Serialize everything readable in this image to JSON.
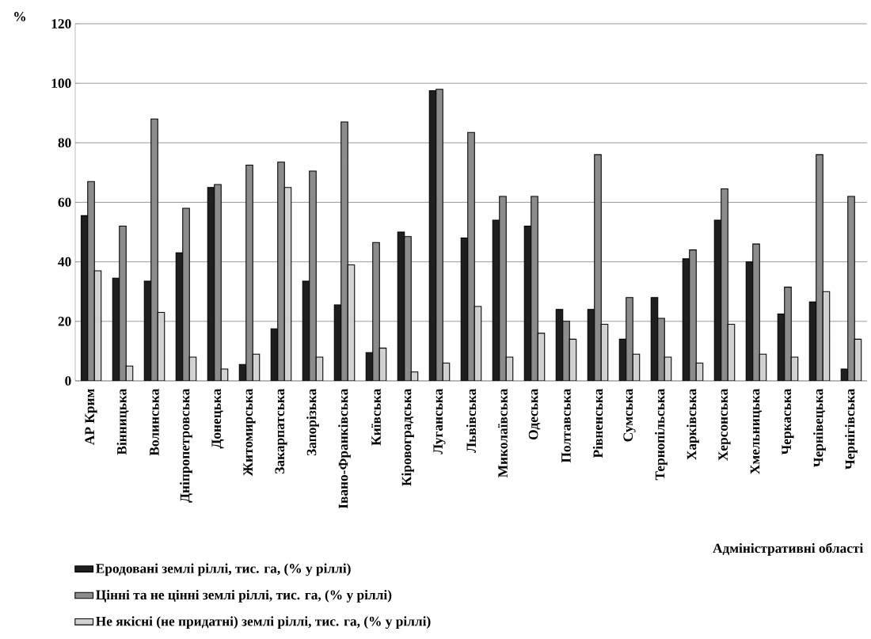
{
  "chart_data": {
    "type": "bar",
    "ylabel": "%",
    "xlabel": "Адміністративні області",
    "categories": [
      "АР Крим",
      "Вінницька",
      "Волинська",
      "Дніпропетровська",
      "Донецька",
      "Житомирська",
      "Закарпатська",
      "Запорізька",
      "Івано-Франківська",
      "Київська",
      "Кіровоградська",
      "Луганська",
      "Львівська",
      "Миколаївська",
      "Одеська",
      "Полтавська",
      "Рівненська",
      "Сумська",
      "Тернопільська",
      "Харківська",
      "Херсонська",
      "Хмельницька",
      "Черкаська",
      "Чернівецька",
      "Чернігівська"
    ],
    "series": [
      {
        "name": "Еродовані землі ріллі, тис. га, (% у ріллі)",
        "color": "#1e1e1e",
        "values": [
          55.5,
          34.5,
          33.5,
          43,
          65,
          5.5,
          17.5,
          33.5,
          25.5,
          9.5,
          50,
          97.5,
          48,
          54,
          52,
          24,
          24,
          14,
          28,
          41,
          54,
          40,
          22.5,
          26.5,
          4
        ]
      },
      {
        "name": "Цінні та не цінні землі ріллі, тис. га, (% у ріллі)",
        "color": "#8c8c8c",
        "values": [
          67,
          52,
          88,
          58,
          66,
          72.5,
          73.5,
          70.5,
          87,
          46.5,
          48.5,
          98,
          83.5,
          62,
          62,
          20,
          76,
          28,
          21,
          44,
          64.5,
          46,
          31.5,
          76,
          62
        ]
      },
      {
        "name": "Не якісні (не придатні) землі ріллі, тис. га, (% у ріллі)",
        "color": "#d2d2d2",
        "values": [
          37,
          5,
          23,
          8,
          4,
          9,
          65,
          8,
          39,
          11,
          3,
          6,
          25,
          8,
          16,
          14,
          19,
          9,
          8,
          6,
          19,
          9,
          8,
          30,
          14
        ]
      }
    ],
    "ylim": [
      0,
      120
    ],
    "yticks": [
      0,
      20,
      40,
      60,
      80,
      100,
      120
    ],
    "grid": "y",
    "legend": "bottom"
  }
}
